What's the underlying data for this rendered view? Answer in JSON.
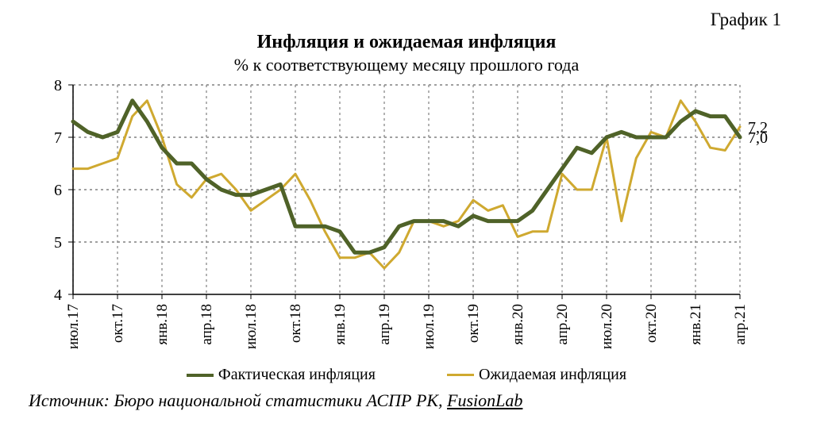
{
  "chart_number": "График 1",
  "title": "Инфляция и ожидаемая инфляция",
  "subtitle": "% к соответствующему месяцу прошлого года",
  "chart": {
    "type": "line",
    "background_color": "#ffffff",
    "grid_color": "#808080",
    "grid_dash": "3 4",
    "axis_color": "#000000",
    "ylim": [
      4,
      8
    ],
    "ytick_step": 1,
    "yticks": [
      4,
      5,
      6,
      7,
      8
    ],
    "x_labels": [
      "июл.17",
      "окт.17",
      "янв.18",
      "апр.18",
      "июл.18",
      "окт.18",
      "янв.19",
      "апр.19",
      "июл.19",
      "окт.19",
      "янв.20",
      "апр.20",
      "июл.20",
      "окт.20",
      "янв.21",
      "апр.21"
    ],
    "x_label_step": 3,
    "n_points": 46,
    "series": {
      "actual": {
        "label": "Фактическая инфляция",
        "color": "#4f6228",
        "width": 5,
        "values": [
          7.3,
          7.1,
          7.0,
          7.1,
          7.7,
          7.3,
          6.8,
          6.5,
          6.5,
          6.2,
          6.0,
          5.9,
          5.9,
          6.0,
          6.1,
          5.3,
          5.3,
          5.3,
          5.2,
          4.8,
          4.8,
          4.9,
          5.3,
          5.4,
          5.4,
          5.4,
          5.3,
          5.5,
          5.4,
          5.4,
          5.4,
          5.6,
          6.0,
          6.4,
          6.8,
          6.7,
          7.0,
          7.1,
          7.0,
          7.0,
          7.0,
          7.3,
          7.5,
          7.4,
          7.4,
          7.0
        ]
      },
      "expected": {
        "label": "Ожидаемая инфляция",
        "color": "#cfa930",
        "width": 3,
        "values": [
          6.4,
          6.4,
          6.5,
          6.6,
          7.4,
          7.7,
          7.0,
          6.1,
          5.85,
          6.2,
          6.3,
          6.0,
          5.6,
          5.8,
          6.0,
          6.3,
          5.8,
          5.2,
          4.7,
          4.7,
          4.8,
          4.5,
          4.8,
          5.4,
          5.4,
          5.3,
          5.4,
          5.8,
          5.6,
          5.7,
          5.1,
          5.2,
          5.2,
          6.3,
          6.0,
          6.0,
          7.0,
          5.4,
          6.6,
          7.1,
          7.0,
          7.7,
          7.3,
          6.8,
          6.75,
          7.2
        ]
      }
    },
    "end_labels": [
      {
        "text": "7,2",
        "y": 7.2,
        "color": "#000000"
      },
      {
        "text": "7,0",
        "y": 7.0,
        "color": "#000000"
      }
    ],
    "tick_fontsize": 20,
    "xlabel_fontsize": 19
  },
  "legend": {
    "items": [
      {
        "label": "Фактическая инфляция",
        "color": "#4f6228",
        "width": 4
      },
      {
        "label": "Ожидаемая инфляция",
        "color": "#cfa930",
        "width": 3
      }
    ]
  },
  "source": {
    "prefix": "Источник: Бюро национальной статистики АСПР РК, ",
    "linked": "FusionLab"
  }
}
